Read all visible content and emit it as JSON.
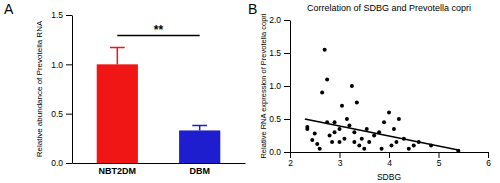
{
  "chart_data": [
    {
      "type": "bar",
      "panel_label": "A",
      "y_label": "Relative abundance of Prevotella RNA",
      "categories": [
        "NBT2DM",
        "DBM"
      ],
      "values": [
        1.0,
        0.33
      ],
      "errors": [
        0.17,
        0.05
      ],
      "colors": [
        "#f01616",
        "#1e1ecf"
      ],
      "annotation": "**",
      "ylim": [
        0,
        1.5
      ],
      "yticks": [
        {
          "value": 0,
          "label": "0.0"
        },
        {
          "value": 0.5,
          "label": "0.5"
        },
        {
          "value": 1,
          "label": "1.0"
        },
        {
          "value": 1.5,
          "label": "1.5"
        }
      ],
      "grid": false
    },
    {
      "type": "scatter",
      "panel_label": "B",
      "title": "Correlation of SDBG and Prevotella copri",
      "x_label": "SDBG",
      "y_label": "Relative RNA expression of Prevotella copri",
      "series": [
        {
          "type": "scatter",
          "color": "#000000",
          "marker": "circle",
          "x": [
            2.35,
            2.35,
            2.45,
            2.5,
            2.55,
            2.6,
            2.65,
            2.7,
            2.75,
            2.75,
            2.8,
            2.85,
            2.9,
            2.9,
            3.0,
            3.0,
            3.05,
            3.1,
            3.15,
            3.2,
            3.25,
            3.3,
            3.3,
            3.35,
            3.4,
            3.45,
            3.5,
            3.55,
            3.6,
            3.7,
            3.8,
            3.85,
            3.9,
            4.0,
            4.05,
            4.1,
            4.15,
            4.2,
            4.3,
            4.4,
            4.5,
            4.6,
            4.85,
            5.4
          ],
          "values": [
            0.35,
            0.38,
            0.18,
            0.28,
            0.12,
            0.05,
            0.9,
            1.55,
            1.1,
            0.45,
            0.25,
            0.15,
            0.3,
            0.45,
            0.35,
            0.15,
            0.7,
            0.2,
            0.5,
            0.4,
            1.0,
            0.15,
            0.3,
            0.75,
            0.1,
            0.2,
            0.05,
            0.35,
            0.15,
            0.25,
            0.3,
            0.05,
            0.45,
            0.6,
            0.1,
            0.35,
            0.15,
            0.5,
            0.2,
            0.05,
            0.1,
            0.15,
            0.1,
            0.02
          ]
        },
        {
          "type": "line",
          "color": "#000000",
          "line_style": "solid",
          "x": [
            2.3,
            5.4
          ],
          "values": [
            0.5,
            0.03
          ]
        }
      ],
      "xlim": [
        2,
        6
      ],
      "xticks": [
        2,
        3,
        4,
        5,
        6
      ],
      "ylim": [
        0,
        2
      ],
      "yticks": [
        {
          "value": 0,
          "label": "0.0"
        },
        {
          "value": 0.5,
          "label": "0.5"
        },
        {
          "value": 1,
          "label": "1.0"
        },
        {
          "value": 1.5,
          "label": "1.5"
        },
        {
          "value": 2,
          "label": "2.0"
        }
      ],
      "grid": false
    }
  ]
}
